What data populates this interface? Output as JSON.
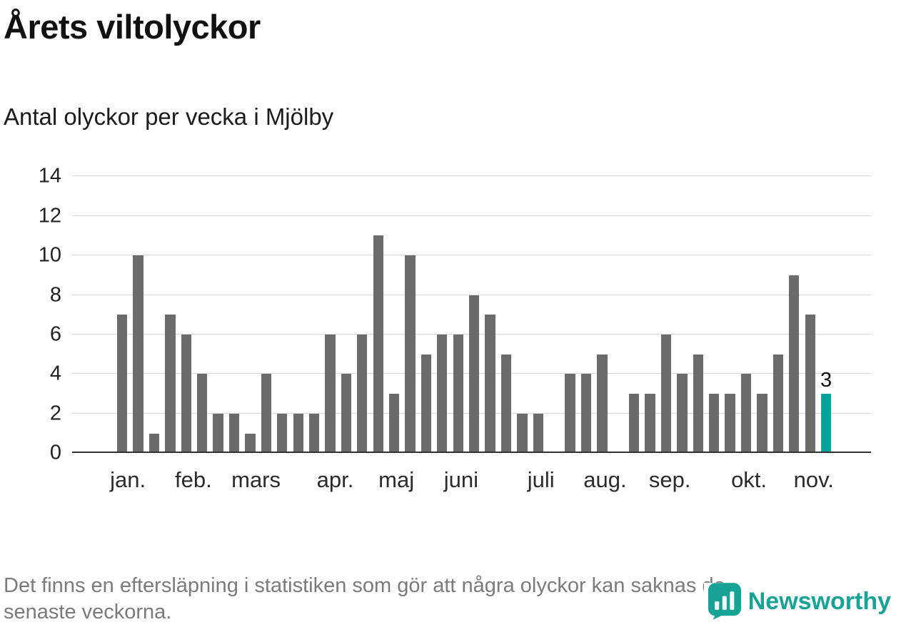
{
  "chart_data": {
    "type": "bar",
    "title": "Årets viltolyckor",
    "subtitle": "Antal olyckor per vecka i Mjölby",
    "xlabel": "",
    "ylabel": "",
    "x_unit": "vecka",
    "ylim": [
      0,
      14
    ],
    "yticks": [
      0,
      2,
      4,
      6,
      8,
      10,
      12,
      14
    ],
    "grid": true,
    "legend": false,
    "values": [
      7,
      10,
      1,
      7,
      6,
      4,
      2,
      2,
      1,
      4,
      2,
      2,
      2,
      6,
      4,
      6,
      11,
      3,
      10,
      5,
      6,
      6,
      8,
      7,
      5,
      2,
      2,
      0,
      4,
      4,
      5,
      0,
      3,
      3,
      6,
      4,
      5,
      3,
      3,
      4,
      3,
      5,
      9,
      7,
      3
    ],
    "highlight_index": 44,
    "highlight_label": "3",
    "bar_color": "#6b6b6b",
    "highlight_color": "#00a49b",
    "grid_color": "#d8d8d8",
    "axis_color": "#333333",
    "month_ticks": [
      {
        "label": "jan.",
        "pos": 0.019
      },
      {
        "label": "feb.",
        "pos": 0.11
      },
      {
        "label": "mars",
        "pos": 0.197
      },
      {
        "label": "apr.",
        "pos": 0.307
      },
      {
        "label": "maj",
        "pos": 0.392
      },
      {
        "label": "juni",
        "pos": 0.482
      },
      {
        "label": "juli",
        "pos": 0.593
      },
      {
        "label": "aug.",
        "pos": 0.682
      },
      {
        "label": "sep.",
        "pos": 0.772
      },
      {
        "label": "okt.",
        "pos": 0.882
      },
      {
        "label": "nov.",
        "pos": 0.972
      }
    ]
  },
  "footnote": {
    "line1": "Det finns en eftersläpning i statistiken som gör att några olyckor kan saknas de",
    "line2": "senaste veckorna."
  },
  "brand": {
    "name": "Newsworthy",
    "color": "#16a294"
  }
}
